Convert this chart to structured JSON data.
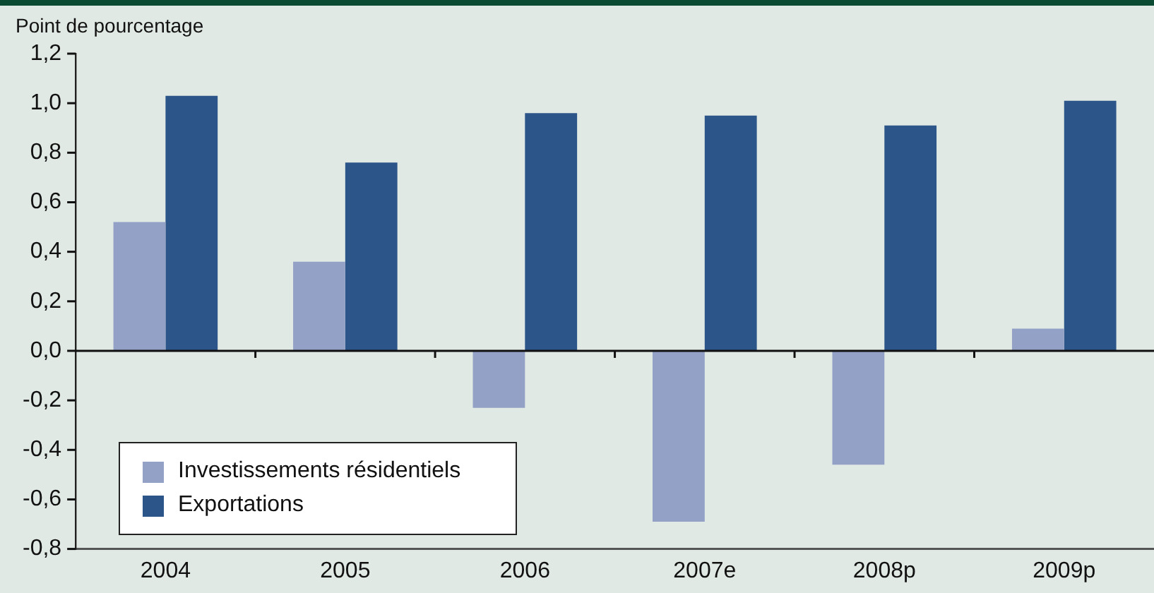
{
  "chart_data": {
    "type": "bar",
    "ylabel": "Point de pourcentage",
    "categories": [
      "2004",
      "2005",
      "2006",
      "2007e",
      "2008p",
      "2009p"
    ],
    "series": [
      {
        "name": "Investissements résidentiels",
        "color": "#94a1c6",
        "values": [
          0.52,
          0.36,
          -0.23,
          -0.69,
          -0.46,
          0.09
        ]
      },
      {
        "name": "Exportations",
        "color": "#2c5589",
        "values": [
          1.03,
          0.76,
          0.96,
          0.95,
          0.91,
          1.01
        ]
      }
    ],
    "ylim": [
      -0.8,
      1.2
    ],
    "yticks": [
      {
        "value": -0.8,
        "label": "-0,8"
      },
      {
        "value": -0.6,
        "label": "-0,6"
      },
      {
        "value": -0.4,
        "label": "-0,4"
      },
      {
        "value": -0.2,
        "label": "-0,2"
      },
      {
        "value": 0,
        "label": "0,0"
      },
      {
        "value": 0.2,
        "label": "0,2"
      },
      {
        "value": 0.4,
        "label": "0,4"
      },
      {
        "value": 0.6,
        "label": "0,6"
      },
      {
        "value": 0.8,
        "label": "0,8"
      },
      {
        "value": 1,
        "label": "1,0"
      },
      {
        "value": 1.2,
        "label": "1,2"
      }
    ],
    "ref_lines": [
      {
        "axis": "y",
        "value": 0,
        "color": "#111111"
      }
    ],
    "grid": false,
    "legend": "bottom left"
  }
}
